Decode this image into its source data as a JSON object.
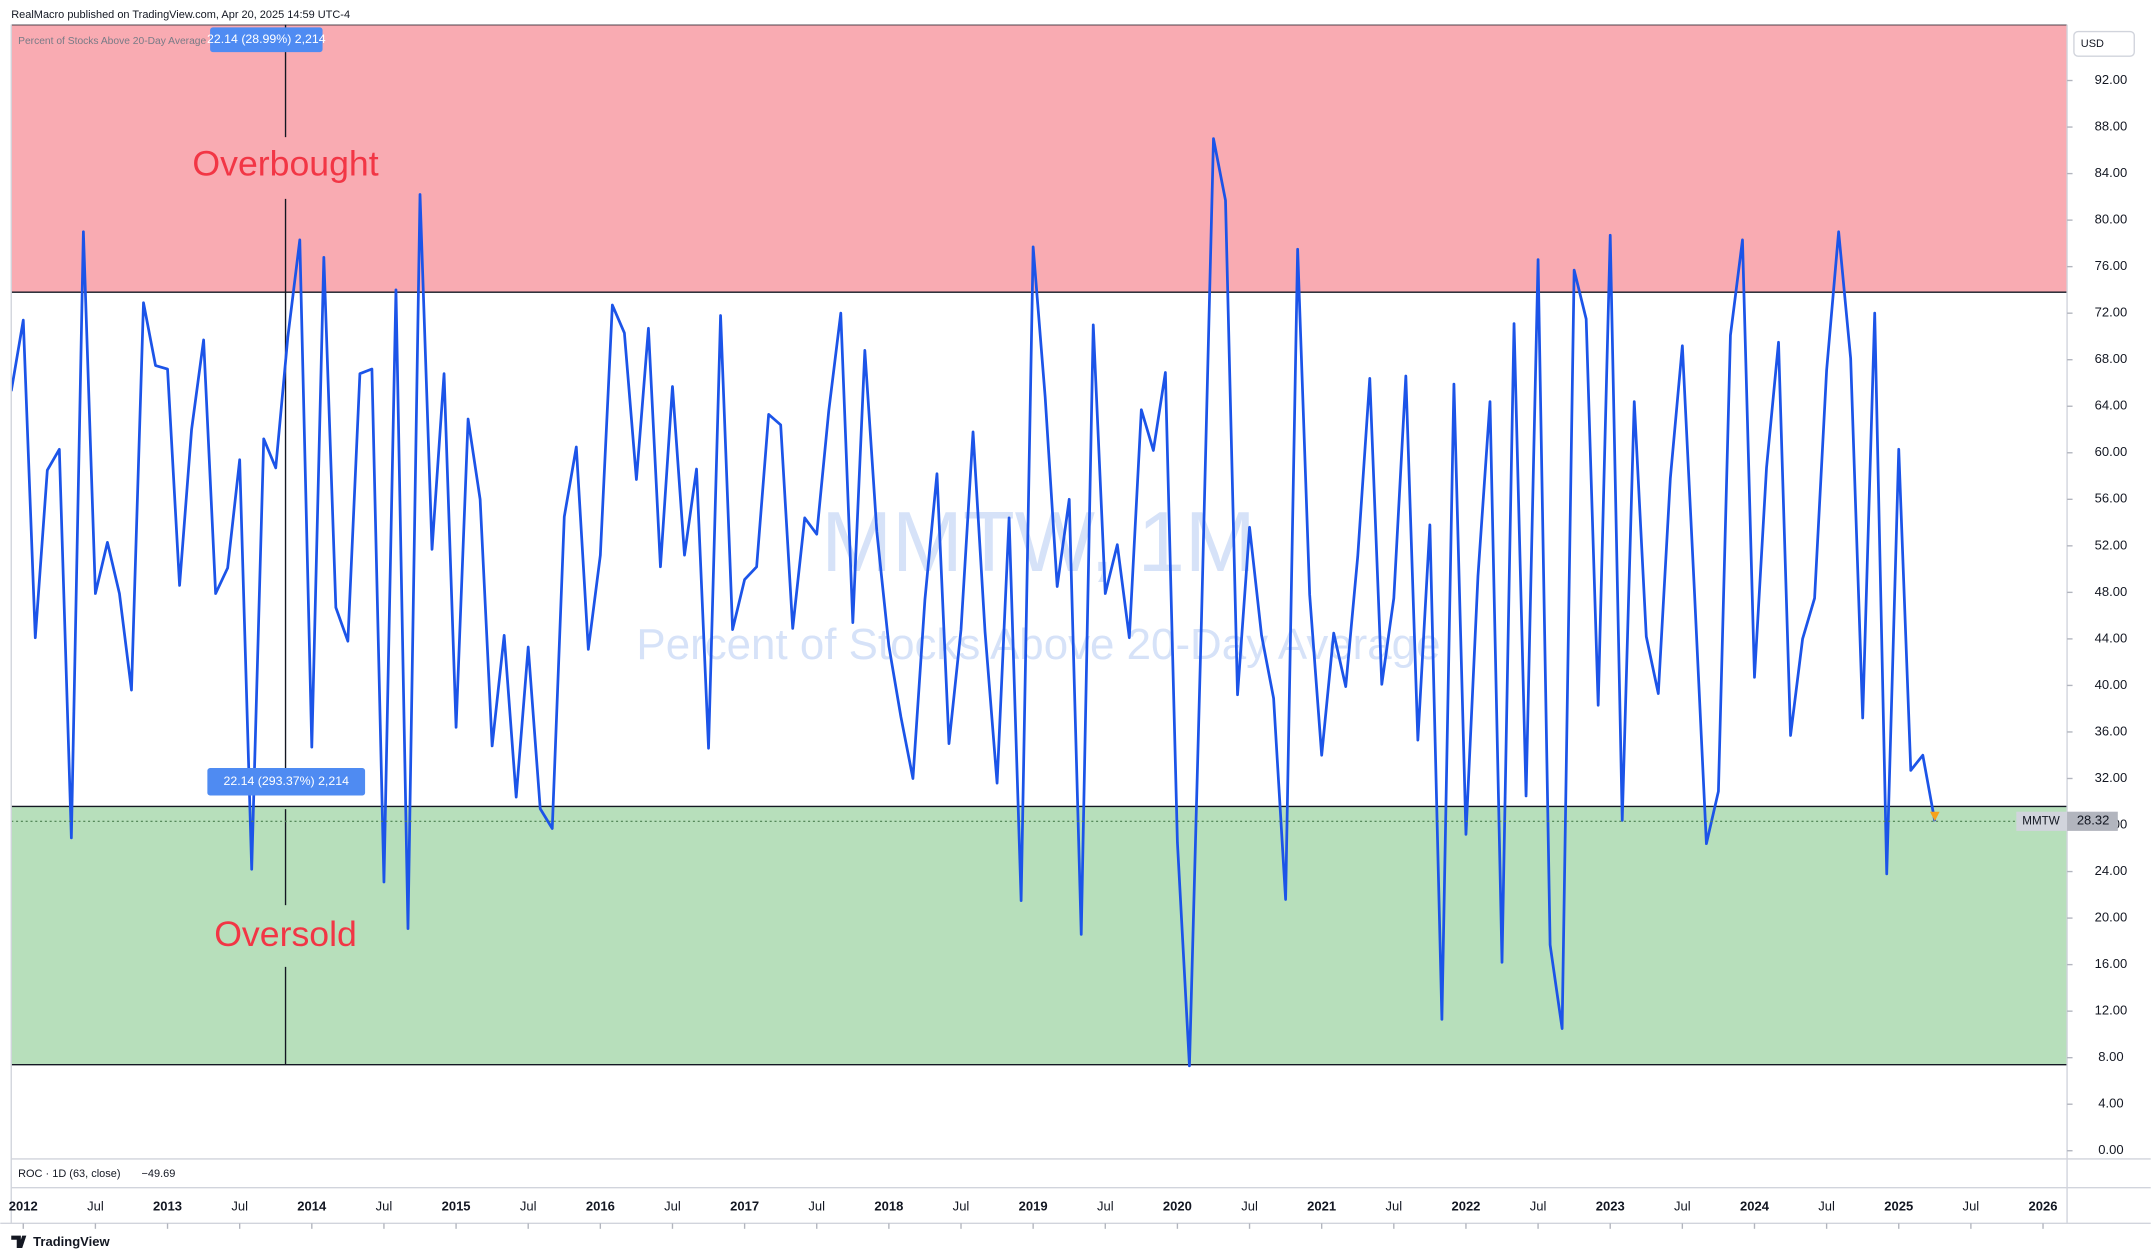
{
  "header": "RealMacro published on TradingView.com, Apr 20, 2025 14:59 UTC-4",
  "footer": "TradingView",
  "chart_data": {
    "type": "line",
    "watermark": "MMTW, 1M",
    "title": "Percent of Stocks Above 20-Day Average",
    "symbol": "MMTW",
    "currency": "USD",
    "indicator": {
      "name": "ROC · 1D (63, close)",
      "value": -49.69,
      "value_label": "−49.69"
    },
    "grid": false,
    "x": [
      "2011-12",
      "2012-01",
      "2012-02",
      "2012-03",
      "2012-04",
      "2012-05",
      "2012-06",
      "2012-07",
      "2012-08",
      "2012-09",
      "2012-10",
      "2012-11",
      "2012-12",
      "2013-01",
      "2013-02",
      "2013-03",
      "2013-04",
      "2013-05",
      "2013-06",
      "2013-07",
      "2013-08",
      "2013-09",
      "2013-10",
      "2013-11",
      "2013-12",
      "2014-01",
      "2014-02",
      "2014-03",
      "2014-04",
      "2014-05",
      "2014-06",
      "2014-07",
      "2014-08",
      "2014-09",
      "2014-10",
      "2014-11",
      "2014-12",
      "2015-01",
      "2015-02",
      "2015-03",
      "2015-04",
      "2015-05",
      "2015-06",
      "2015-07",
      "2015-08",
      "2015-09",
      "2015-10",
      "2015-11",
      "2015-12",
      "2016-01",
      "2016-02",
      "2016-03",
      "2016-04",
      "2016-05",
      "2016-06",
      "2016-07",
      "2016-08",
      "2016-09",
      "2016-10",
      "2016-11",
      "2016-12",
      "2017-01",
      "2017-02",
      "2017-03",
      "2017-04",
      "2017-05",
      "2017-06",
      "2017-07",
      "2017-08",
      "2017-09",
      "2017-10",
      "2017-11",
      "2017-12",
      "2018-01",
      "2018-02",
      "2018-03",
      "2018-04",
      "2018-05",
      "2018-06",
      "2018-07",
      "2018-08",
      "2018-09",
      "2018-10",
      "2018-11",
      "2018-12",
      "2019-01",
      "2019-02",
      "2019-03",
      "2019-04",
      "2019-05",
      "2019-06",
      "2019-07",
      "2019-08",
      "2019-09",
      "2019-10",
      "2019-11",
      "2019-12",
      "2020-01",
      "2020-02",
      "2020-03",
      "2020-04",
      "2020-05",
      "2020-06",
      "2020-07",
      "2020-08",
      "2020-09",
      "2020-10",
      "2020-11",
      "2020-12",
      "2021-01",
      "2021-02",
      "2021-03",
      "2021-04",
      "2021-05",
      "2021-06",
      "2021-07",
      "2021-08",
      "2021-09",
      "2021-10",
      "2021-11",
      "2021-12",
      "2022-01",
      "2022-02",
      "2022-03",
      "2022-04",
      "2022-05",
      "2022-06",
      "2022-07",
      "2022-08",
      "2022-09",
      "2022-10",
      "2022-11",
      "2022-12",
      "2023-01",
      "2023-02",
      "2023-03",
      "2023-04",
      "2023-05",
      "2023-06",
      "2023-07",
      "2023-08",
      "2023-09",
      "2023-10",
      "2023-11",
      "2023-12",
      "2024-01",
      "2024-02",
      "2024-03",
      "2024-04",
      "2024-05",
      "2024-06",
      "2024-07",
      "2024-08",
      "2024-09",
      "2024-10",
      "2024-11",
      "2024-12",
      "2025-01",
      "2025-02",
      "2025-03",
      "2025-04"
    ],
    "series": [
      {
        "name": "MMTW",
        "color": "#1c54e8",
        "values": [
          65.3,
          71.4,
          44.1,
          58.5,
          60.3,
          26.9,
          79.0,
          47.9,
          52.3,
          47.9,
          39.6,
          72.9,
          67.5,
          67.2,
          48.6,
          62.0,
          69.7,
          47.9,
          50.1,
          59.4,
          24.2,
          61.2,
          58.7,
          69.9,
          78.3,
          34.7,
          76.8,
          46.7,
          43.8,
          66.8,
          67.2,
          23.1,
          74.0,
          19.1,
          82.2,
          51.7,
          66.8,
          36.4,
          62.9,
          56.0,
          34.8,
          44.3,
          30.4,
          43.3,
          29.4,
          27.7,
          54.5,
          60.5,
          43.1,
          51.2,
          72.7,
          70.3,
          57.7,
          70.7,
          50.2,
          65.7,
          51.2,
          58.6,
          34.6,
          71.8,
          44.8,
          49.1,
          50.2,
          63.3,
          62.4,
          44.9,
          54.4,
          53.0,
          63.6,
          72.0,
          45.4,
          68.8,
          53.2,
          43.4,
          37.3,
          32.0,
          47.4,
          58.2,
          35.0,
          44.8,
          61.8,
          44.6,
          31.6,
          54.4,
          21.5,
          77.7,
          64.8,
          48.5,
          56.0,
          18.6,
          71.0,
          47.9,
          52.1,
          44.1,
          63.7,
          60.2,
          66.9,
          26.5,
          7.3,
          45.6,
          87.0,
          81.7,
          39.2,
          53.6,
          44.3,
          38.9,
          21.6,
          77.5,
          47.8,
          34.0,
          44.5,
          39.9,
          51.1,
          66.4,
          40.1,
          47.5,
          66.6,
          35.3,
          53.8,
          11.3,
          65.9,
          27.2,
          49.4,
          64.4,
          16.2,
          71.1,
          30.5,
          76.6,
          17.7,
          10.5,
          75.7,
          71.5,
          38.3,
          78.7,
          28.4,
          64.4,
          44.2,
          39.3,
          57.8,
          69.2,
          48.2,
          26.4,
          30.9,
          70.1,
          78.3,
          40.7,
          58.7,
          69.5,
          35.7,
          44.0,
          47.5,
          67.1,
          79.0,
          68.1,
          37.2,
          72.0,
          23.8,
          60.3,
          32.7,
          34.0,
          28.32
        ]
      }
    ],
    "xlim": [
      "2011-12",
      "2026-03"
    ],
    "ylim": [
      -0.7,
      96.8
    ],
    "xticks": [
      {
        "value": "2012-01",
        "label": "2012"
      },
      {
        "value": "2012-07",
        "label": "Jul"
      },
      {
        "value": "2013-01",
        "label": "2013"
      },
      {
        "value": "2013-07",
        "label": "Jul"
      },
      {
        "value": "2014-01",
        "label": "2014"
      },
      {
        "value": "2014-07",
        "label": "Jul"
      },
      {
        "value": "2015-01",
        "label": "2015"
      },
      {
        "value": "2015-07",
        "label": "Jul"
      },
      {
        "value": "2016-01",
        "label": "2016"
      },
      {
        "value": "2016-07",
        "label": "Jul"
      },
      {
        "value": "2017-01",
        "label": "2017"
      },
      {
        "value": "2017-07",
        "label": "Jul"
      },
      {
        "value": "2018-01",
        "label": "2018"
      },
      {
        "value": "2018-07",
        "label": "Jul"
      },
      {
        "value": "2019-01",
        "label": "2019"
      },
      {
        "value": "2019-07",
        "label": "Jul"
      },
      {
        "value": "2020-01",
        "label": "2020"
      },
      {
        "value": "2020-07",
        "label": "Jul"
      },
      {
        "value": "2021-01",
        "label": "2021"
      },
      {
        "value": "2021-07",
        "label": "Jul"
      },
      {
        "value": "2022-01",
        "label": "2022"
      },
      {
        "value": "2022-07",
        "label": "Jul"
      },
      {
        "value": "2023-01",
        "label": "2023"
      },
      {
        "value": "2023-07",
        "label": "Jul"
      },
      {
        "value": "2024-01",
        "label": "2024"
      },
      {
        "value": "2024-07",
        "label": "Jul"
      },
      {
        "value": "2025-01",
        "label": "2025"
      },
      {
        "value": "2025-07",
        "label": "Jul"
      },
      {
        "value": "2026-01",
        "label": "2026"
      }
    ],
    "yticks": [
      {
        "value": 0,
        "label": "0.00"
      },
      {
        "value": 4,
        "label": "4.00"
      },
      {
        "value": 8,
        "label": "8.00"
      },
      {
        "value": 12,
        "label": "12.00"
      },
      {
        "value": 16,
        "label": "16.00"
      },
      {
        "value": 20,
        "label": "20.00"
      },
      {
        "value": 24,
        "label": "24.00"
      },
      {
        "value": 28,
        "label": "28.00"
      },
      {
        "value": 32,
        "label": "32.00"
      },
      {
        "value": 36,
        "label": "36.00"
      },
      {
        "value": 40,
        "label": "40.00"
      },
      {
        "value": 44,
        "label": "44.00"
      },
      {
        "value": 48,
        "label": "48.00"
      },
      {
        "value": 52,
        "label": "52.00"
      },
      {
        "value": 56,
        "label": "56.00"
      },
      {
        "value": 60,
        "label": "60.00"
      },
      {
        "value": 64,
        "label": "64.00"
      },
      {
        "value": 68,
        "label": "68.00"
      },
      {
        "value": 72,
        "label": "72.00"
      },
      {
        "value": 76,
        "label": "76.00"
      },
      {
        "value": 80,
        "label": "80.00"
      },
      {
        "value": 84,
        "label": "84.00"
      },
      {
        "value": 88,
        "label": "88.00"
      },
      {
        "value": 92,
        "label": "92.00"
      }
    ],
    "zones": [
      {
        "label": "Overbought",
        "from": 73.8,
        "to": 96.8,
        "color": "#f9abb2"
      },
      {
        "label": "Oversold",
        "from": 7.4,
        "to": 29.6,
        "color": "#b7dfbb"
      }
    ],
    "annotations": [
      "22.14 (28.99%) 2,214",
      "22.14 (293.37%) 2,214"
    ]
  }
}
